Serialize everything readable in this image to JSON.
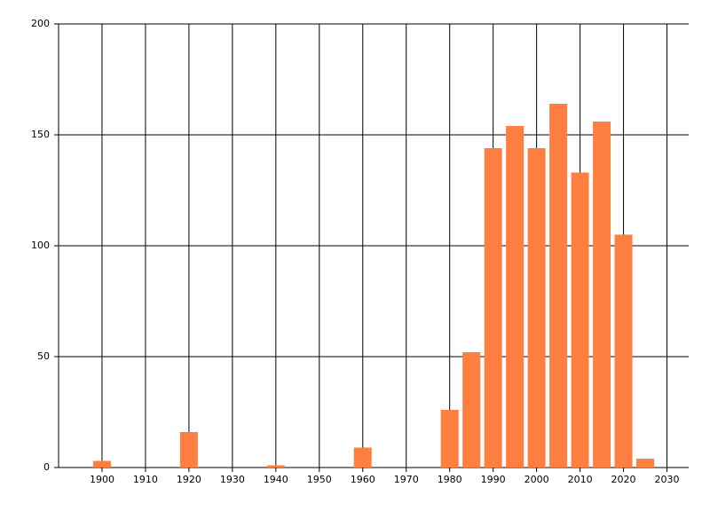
{
  "chart_data": {
    "type": "bar",
    "x": [
      1900,
      1920,
      1940,
      1960,
      1980,
      1985,
      1990,
      1995,
      2000,
      2005,
      2010,
      2015,
      2020,
      2025
    ],
    "values": [
      3,
      16,
      1,
      9,
      26,
      52,
      144,
      154,
      144,
      164,
      133,
      156,
      105,
      4
    ],
    "color": "#ff7f40",
    "xlim": [
      1890,
      2035
    ],
    "ylim": [
      0,
      200
    ],
    "xticks": [
      1900,
      1910,
      1920,
      1930,
      1940,
      1950,
      1960,
      1970,
      1980,
      1990,
      2000,
      2010,
      2020,
      2030
    ],
    "yticks": [
      0,
      50,
      100,
      150,
      200
    ],
    "grid": true
  }
}
